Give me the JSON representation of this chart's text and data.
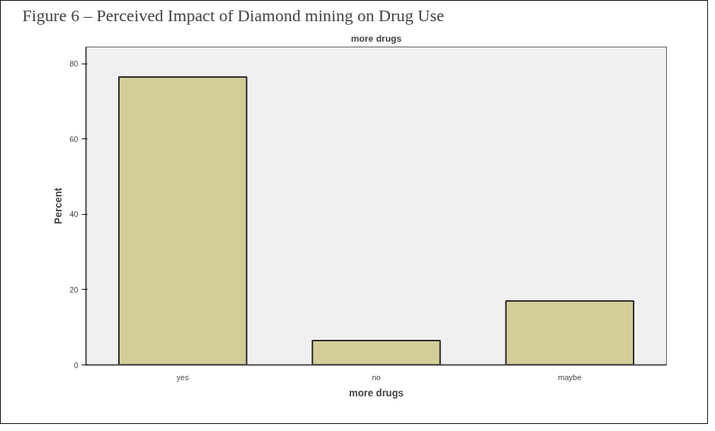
{
  "chart_data": {
    "type": "bar",
    "title": "Figure 6 – Perceived Impact of Diamond mining on Drug Use",
    "subtitle": "more drugs",
    "xlabel": "more drugs",
    "ylabel": "Percent",
    "categories": [
      "yes",
      "no",
      "maybe"
    ],
    "values": [
      76.5,
      6.5,
      17.0
    ],
    "color": "#d3ce98",
    "ylim": [
      0,
      84.5
    ],
    "yticks": [
      0,
      20,
      40,
      60,
      80
    ],
    "grid": false
  }
}
